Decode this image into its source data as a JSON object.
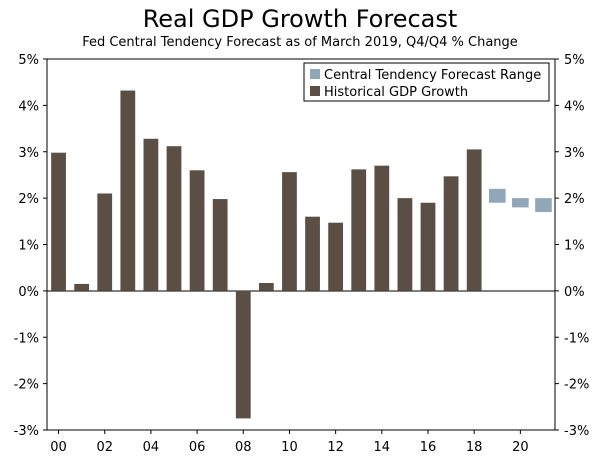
{
  "chart_data": {
    "type": "bar",
    "title": "Real GDP Growth Forecast",
    "subtitle": "Fed Central Tendency Forecast as of March 2019, Q4/Q4 % Change",
    "xlabel": "",
    "ylabel": "",
    "ylim": [
      -3,
      5
    ],
    "y_ticks": [
      "5%",
      "4%",
      "3%",
      "2%",
      "1%",
      "0%",
      "-1%",
      "-2%",
      "-3%"
    ],
    "y_tick_values": [
      5,
      4,
      3,
      2,
      1,
      0,
      -1,
      -2,
      -3
    ],
    "x_tick_labels": [
      "00",
      "02",
      "04",
      "06",
      "08",
      "10",
      "12",
      "14",
      "16",
      "18",
      "20"
    ],
    "x_tick_years": [
      2000,
      2002,
      2004,
      2006,
      2008,
      2010,
      2012,
      2014,
      2016,
      2018,
      2020
    ],
    "year_range": [
      2000,
      2021
    ],
    "legend_position": "top-right",
    "series": [
      {
        "name": "Historical GDP Growth",
        "color": "#5b4f45",
        "kind": "bar",
        "years": [
          2000,
          2001,
          2002,
          2003,
          2004,
          2005,
          2006,
          2007,
          2008,
          2009,
          2010,
          2011,
          2012,
          2013,
          2014,
          2015,
          2016,
          2017,
          2018
        ],
        "values": [
          2.98,
          0.15,
          2.1,
          4.32,
          3.28,
          3.12,
          2.6,
          1.98,
          -2.75,
          0.17,
          2.56,
          1.6,
          1.47,
          2.62,
          2.7,
          2.0,
          1.9,
          2.47,
          3.05
        ]
      },
      {
        "name": "Central Tendency Forecast Range",
        "color": "#8fa7b8",
        "kind": "range",
        "years": [
          2019,
          2020,
          2021
        ],
        "ranges": [
          [
            1.9,
            2.2
          ],
          [
            1.8,
            2.0
          ],
          [
            1.7,
            2.0
          ]
        ]
      }
    ]
  }
}
